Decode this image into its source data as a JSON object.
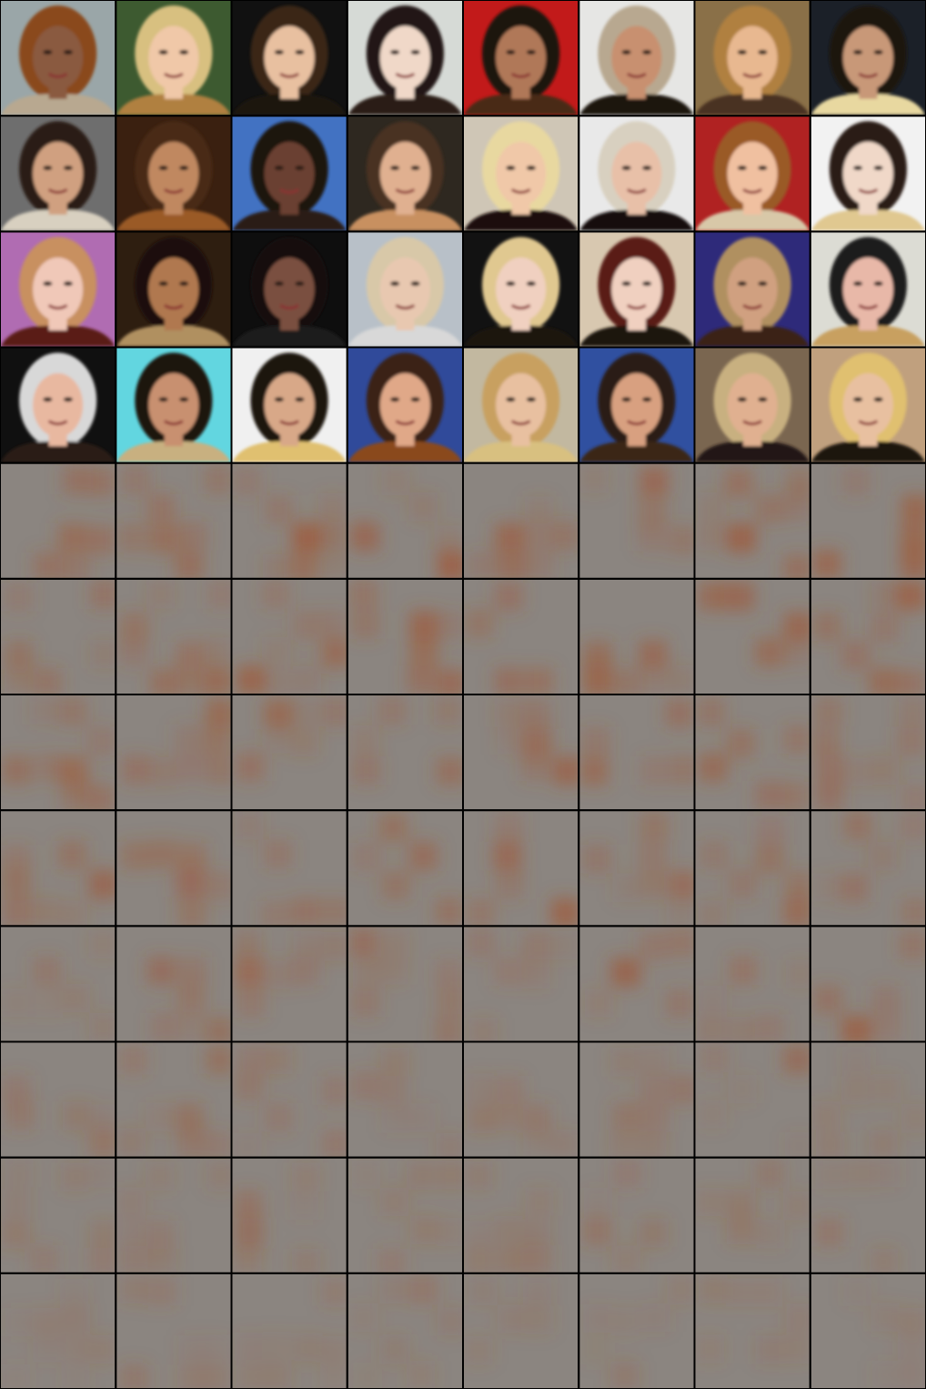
{
  "grid": {
    "rows": 12,
    "columns": 8
  }
}
